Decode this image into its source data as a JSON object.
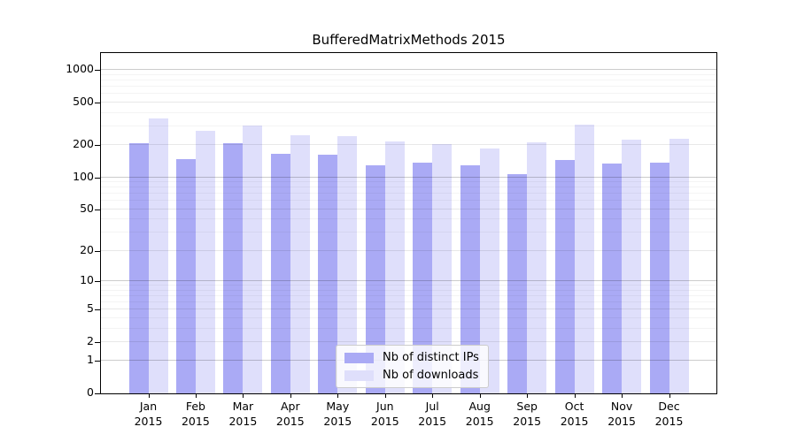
{
  "title": "BufferedMatrixMethods 2015",
  "chart_data": {
    "type": "bar",
    "title": "BufferedMatrixMethods 2015",
    "categories": [
      "Jan 2015",
      "Feb 2015",
      "Mar 2015",
      "Apr 2015",
      "May 2015",
      "Jun 2015",
      "Jul 2015",
      "Aug 2015",
      "Sep 2015",
      "Oct 2015",
      "Nov 2015",
      "Dec 2015"
    ],
    "month_labels": [
      "Jan",
      "Feb",
      "Mar",
      "Apr",
      "May",
      "Jun",
      "Jul",
      "Aug",
      "Sep",
      "Oct",
      "Nov",
      "Dec"
    ],
    "year_label": "2015",
    "series": [
      {
        "name": "Nb of distinct IPs",
        "color": "#aaaaf5",
        "values": [
          207,
          149,
          209,
          167,
          163,
          130,
          137,
          130,
          108,
          145,
          136,
          137
        ]
      },
      {
        "name": "Nb of downloads",
        "color": "#dfdffb",
        "values": [
          358,
          271,
          303,
          248,
          245,
          215,
          206,
          186,
          211,
          310,
          224,
          230
        ]
      }
    ],
    "y_ticks": [
      1000,
      500,
      200,
      100,
      50,
      20,
      10,
      5,
      2,
      1,
      0
    ],
    "y_scale": "log10(value+1)",
    "ylim": [
      0,
      1450
    ],
    "grid": true,
    "legend_position": "lower center",
    "minor_grid_values": [
      900,
      800,
      700,
      600,
      400,
      300,
      90,
      80,
      70,
      60,
      40,
      30,
      9,
      8,
      7,
      6,
      4,
      3
    ],
    "decade_grid_values": [
      1000,
      100,
      10,
      1
    ],
    "mid_grid_values": [
      500,
      200,
      50,
      20,
      5,
      2
    ]
  },
  "colors": {
    "bar_distinct_ips": "#aaaaf5",
    "bar_downloads": "#dfdffb",
    "grid_decade": "rgba(0,0,0,0.20)",
    "grid_mid": "rgba(0,0,0,0.09)",
    "grid_minor": "rgba(0,0,0,0.045)",
    "axis": "#000000",
    "background": "#ffffff"
  }
}
